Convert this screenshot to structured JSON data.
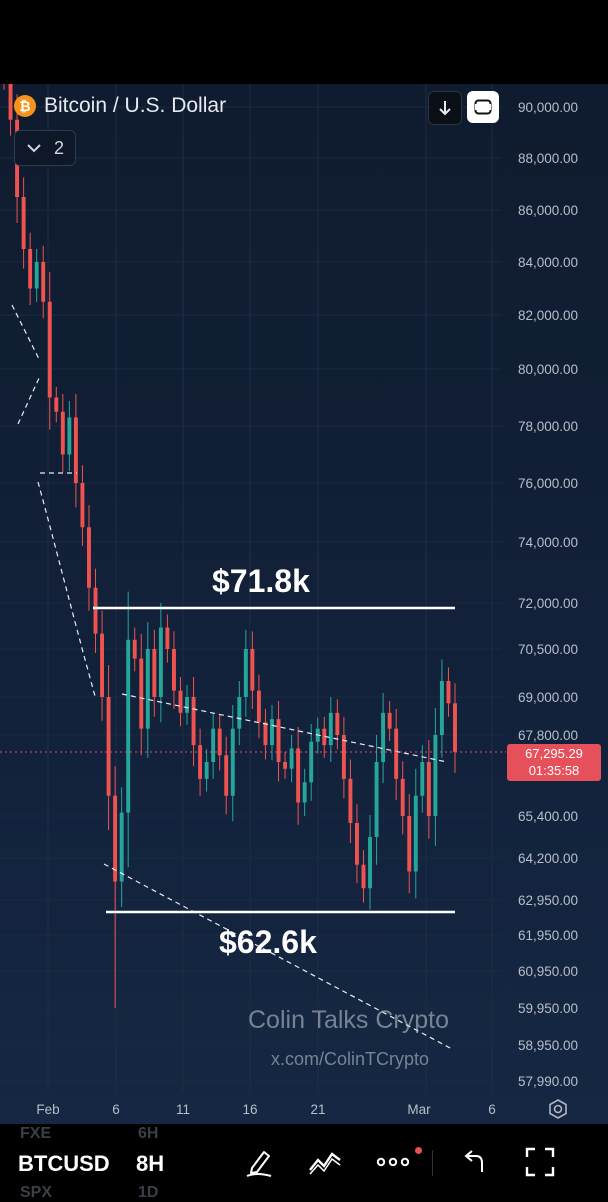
{
  "header": {
    "logo_letter": "₿",
    "title": "Bitcoin / U.S. Dollar",
    "collapse_count": "2"
  },
  "price_label": {
    "price": "67,295.29",
    "countdown": "01:35:58"
  },
  "annotations": {
    "resistance": "$71.8k",
    "support": "$62.6k"
  },
  "watermark": {
    "name": "Colin Talks Crypto",
    "handle": "x.com/ColinTCrypto"
  },
  "toolbar": {
    "ghost_top_left": "FXE",
    "ghost_top_right": "6H",
    "ghost_bottom_left": "SPX",
    "ghost_bottom_right": "1D",
    "symbol": "BTCUSD",
    "interval": "8H"
  },
  "colors": {
    "up": "#26a69a",
    "down": "#ef5350",
    "price_label": "#e5505a",
    "background": "#12213a"
  },
  "chart_data": {
    "type": "candlestick",
    "y_ticks": [
      90000,
      88000,
      86000,
      84000,
      82000,
      80000,
      78000,
      76000,
      74000,
      72000,
      70500,
      69000,
      67800,
      65400,
      64200,
      62950,
      61950,
      60950,
      59950,
      58950,
      57990
    ],
    "y_tick_labels": [
      "90,000.00",
      "88,000.00",
      "86,000.00",
      "84,000.00",
      "82,000.00",
      "80,000.00",
      "78,000.00",
      "76,000.00",
      "74,000.00",
      "72,000.00",
      "70,500.00",
      "69,000.00",
      "67,800.00",
      "65,400.00",
      "64,200.00",
      "62,950.00",
      "61,950.00",
      "60,950.00",
      "59,950.00",
      "58,950.00",
      "57,990.00"
    ],
    "x_ticks": [
      "Feb",
      "6",
      "11",
      "16",
      "21",
      "Mar",
      "6"
    ],
    "last_price": 67295.29,
    "horizontal_levels": [
      {
        "label": "$71.8k",
        "value": 71800
      },
      {
        "label": "$62.6k",
        "value": 62600
      }
    ],
    "close_path": [
      91000,
      89500,
      86500,
      84500,
      83000,
      84000,
      82500,
      79000,
      78500,
      77000,
      78300,
      76000,
      74500,
      72500,
      71000,
      69000,
      66000,
      63500,
      65500,
      70800,
      70200,
      68000,
      70500,
      69000,
      71200,
      70500,
      69200,
      68500,
      69000,
      67500,
      66500,
      67000,
      68000,
      67200,
      66000,
      68000,
      69000,
      70500,
      69200,
      68200,
      67500,
      68300,
      67000,
      66800,
      67400,
      65800,
      66400,
      67600,
      68000,
      67500,
      68500,
      67800,
      66500,
      65200,
      64000,
      63300,
      64800,
      67000,
      68500,
      68000,
      66500,
      65400,
      63800,
      66000,
      67000,
      65400,
      67800,
      69500,
      68800,
      67300
    ]
  }
}
